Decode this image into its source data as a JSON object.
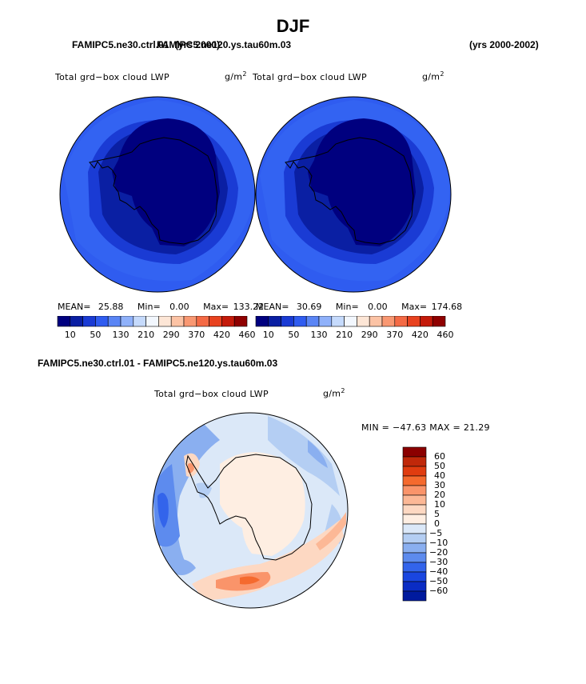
{
  "title": "DJF",
  "top_panel": {
    "left_case": "FAMIPC5.ne30.ctrl.01",
    "left_years": "(yrs 2000)",
    "right_case": "FAMIPC5.ne120.ys.tau60m.03",
    "right_years": "(yrs 2000-2002)",
    "left_map": {
      "label": "Total grd−box cloud LWP",
      "units": "g/m",
      "units_sup": "2",
      "mean_label": "MEAN=",
      "mean": "25.88",
      "min_label": "Min=",
      "min": "0.00",
      "max_label": "Max=",
      "max": "133.22"
    },
    "right_map": {
      "label": "Total grd−box cloud LWP",
      "units": "g/m",
      "units_sup": "2",
      "mean_label": "MEAN=",
      "mean": "30.69",
      "min_label": "Min=",
      "min": "0.00",
      "max_label": "Max=",
      "max": "174.68"
    },
    "colorbar_colors": [
      "#00007f",
      "#0a1fa3",
      "#1a3bd4",
      "#2f5cf0",
      "#5a85f5",
      "#8fb1fa",
      "#c5dafc",
      "#f2f7fe",
      "#fde6d6",
      "#fcc3a5",
      "#f99872",
      "#f46a45",
      "#e8421f",
      "#c41a0a",
      "#8f0000"
    ],
    "colorbar_ticks": [
      "10",
      "50",
      "130",
      "210",
      "290",
      "370",
      "420",
      "460"
    ]
  },
  "bottom_panel": {
    "title": "FAMIPC5.ne30.ctrl.01 - FAMIPC5.ne120.ys.tau60m.03",
    "map": {
      "label": "Total grd−box cloud LWP",
      "units": "g/m",
      "units_sup": "2",
      "minmax_text": "MIN = −47.63 MAX =  21.29"
    },
    "legend_colors": [
      "#8b0000",
      "#c0280a",
      "#e03c10",
      "#f56a2e",
      "#fa946a",
      "#fcb896",
      "#fdd8c2",
      "#feeee2",
      "#dbe8f8",
      "#b4cef3",
      "#8aaff0",
      "#5d8bee",
      "#3364eb",
      "#1a46e0",
      "#0a2cc4",
      "#001a9e"
    ],
    "legend_labels": [
      "60",
      "50",
      "40",
      "30",
      "20",
      "10",
      "5",
      "0",
      "−5",
      "−10",
      "−20",
      "−30",
      "−40",
      "−50",
      "−60"
    ]
  }
}
